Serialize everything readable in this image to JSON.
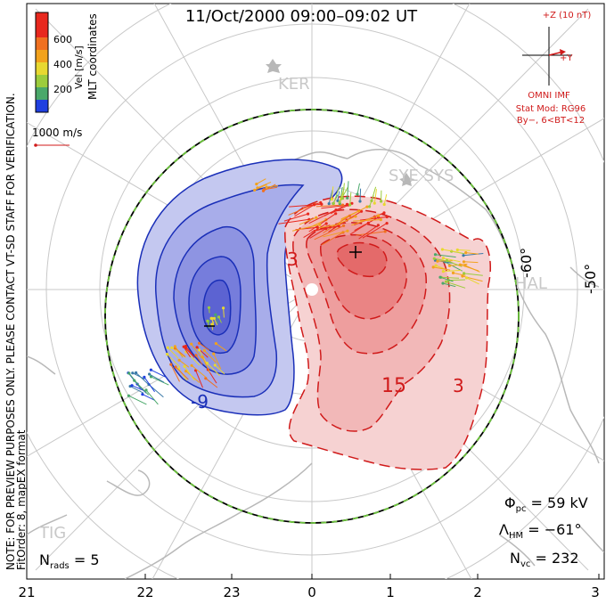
{
  "title": "11/Oct/2000 09:00–09:02 UT",
  "colorbar": {
    "label": "Vel [m/s]",
    "ticks": [
      "600",
      "400",
      "200"
    ],
    "colors": [
      "#e8281e",
      "#f07020",
      "#f2a21c",
      "#e8d830",
      "#9ccc3c",
      "#4aa86a",
      "#3a7aa8",
      "#2040e0"
    ]
  },
  "coord_label": "MLT coordinates",
  "velocity_scale": "1000 m/s",
  "note": "NOTE: FOR PREVIEW PURPOSES ONLY. PLEASE CONTACT VT-SD STAFF FOR VERIFICATION.",
  "fit_line": "FitOrder: 8, mapEX format",
  "imf": {
    "bz_label": "+Z (10 nT)",
    "by_label": "+Y",
    "source": "OMNI IMF",
    "stat_mod": "Stat Mod: RG96",
    "condition": "By−, 6<BT<12"
  },
  "latitude_labels": [
    "-60°",
    "-50°"
  ],
  "stations": [
    "KER",
    "SYE SYS",
    "HAL",
    "TIG"
  ],
  "contour_labels": [
    "3",
    "15",
    "3",
    "-9"
  ],
  "mlt_labels": [
    "21",
    "22",
    "23",
    "0",
    "1",
    "2",
    "3"
  ],
  "stats": {
    "phi_pc": "Φpc = 59 kV",
    "lambda_hm": "ΛHM = −61°",
    "n_vc": "Nvc = 232",
    "n_rads": "Nrads = 5"
  },
  "stats_parts": {
    "phi_sym": "Φ",
    "phi_sub": "pc",
    "phi_val": " = 59 kV",
    "lam_sym": "Λ",
    "lam_sub": "HM",
    "lam_val": " = −61°",
    "nvc_sym": "N",
    "nvc_sub": "vc",
    "nvc_val": " = 232",
    "nrad_sym": "N",
    "nrad_sub": "rads",
    "nrad_val": " = 5"
  },
  "cell_colors": {
    "negative": "#1a2fb8",
    "positive": "#cc1a1a",
    "boundary": "#6cc33c"
  }
}
